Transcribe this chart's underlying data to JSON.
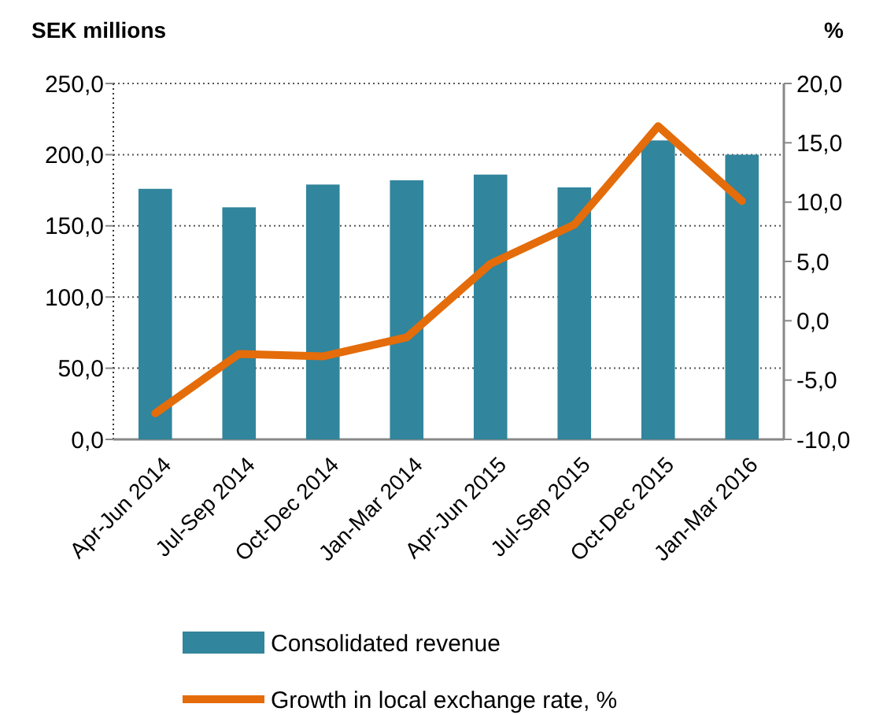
{
  "chart_data": {
    "type": "bar",
    "ylabel": "SEK millions",
    "y2label": "%",
    "categories": [
      "Apr-Jun 2014",
      "Jul-Sep 2014",
      "Oct-Dec 2014",
      "Jan-Mar 2014",
      "Apr-Jun 2015",
      "Jul-Sep 2015",
      "Oct-Dec 2015",
      "Jan-Mar 2016"
    ],
    "series": [
      {
        "name": "Consolidated revenue",
        "color": "#31859c",
        "values": [
          176,
          163,
          179,
          182,
          186,
          177,
          210,
          200
        ]
      },
      {
        "name": "Growth in local exchange rate, %",
        "type": "line",
        "axis": "y2",
        "color": "#e46c0a",
        "values": [
          -7.8,
          -2.8,
          -3.0,
          -1.4,
          4.8,
          8.1,
          16.4,
          10.1
        ]
      }
    ],
    "ylim": [
      0,
      250
    ],
    "yticks": [
      {
        "value": 0,
        "label": "0,0"
      },
      {
        "value": 50,
        "label": "50,0"
      },
      {
        "value": 100,
        "label": "100,0"
      },
      {
        "value": 150,
        "label": "150,0"
      },
      {
        "value": 200,
        "label": "200,0"
      },
      {
        "value": 250,
        "label": "250,0"
      }
    ],
    "y2lim": [
      -10,
      20
    ],
    "y2ticks": [
      {
        "value": -10,
        "label": "-10,0"
      },
      {
        "value": -5,
        "label": "-5,0"
      },
      {
        "value": 0,
        "label": "0,0"
      },
      {
        "value": 5,
        "label": "5,0"
      },
      {
        "value": 10,
        "label": "10,0"
      },
      {
        "value": 15,
        "label": "15,0"
      },
      {
        "value": 20,
        "label": "20,0"
      }
    ],
    "grid": "y",
    "legend": "bottom",
    "marker": "none",
    "line_style": "solid"
  }
}
